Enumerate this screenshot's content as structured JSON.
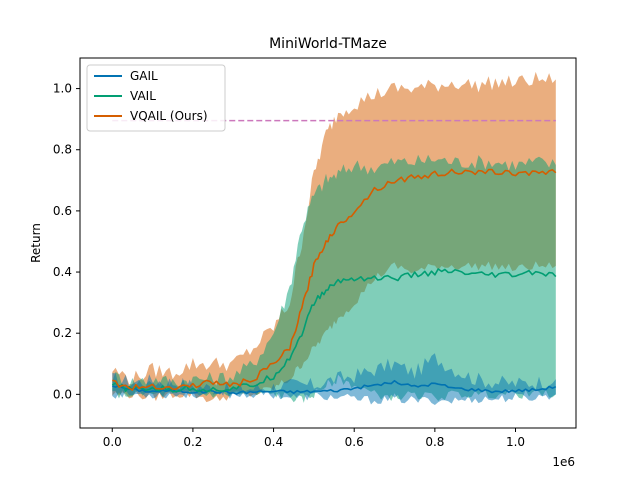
{
  "chart_data": {
    "type": "line",
    "title": "MiniWorld-TMaze",
    "xlabel": "",
    "ylabel": "Return",
    "x_offset_label": "1e6",
    "xlim": [
      -0.08,
      1.15
    ],
    "ylim": [
      -0.11,
      1.1
    ],
    "x_ticks": [
      0.0,
      0.2,
      0.4,
      0.6,
      0.8,
      1.0
    ],
    "x_tick_labels": [
      "0.0",
      "0.2",
      "0.4",
      "0.6",
      "0.8",
      "1.0"
    ],
    "y_ticks": [
      0.0,
      0.2,
      0.4,
      0.6,
      0.8,
      1.0
    ],
    "y_tick_labels": [
      "0.0",
      "0.2",
      "0.4",
      "0.6",
      "0.8",
      "1.0"
    ],
    "grid": false,
    "legend_position": "top-left",
    "reference_line": {
      "y": 0.895,
      "color": "#cc78bc",
      "style": "dashed"
    },
    "series": [
      {
        "name": "GAIL",
        "color": "#0173b2",
        "x": [
          0.0,
          0.05,
          0.1,
          0.15,
          0.2,
          0.25,
          0.3,
          0.35,
          0.4,
          0.45,
          0.5,
          0.55,
          0.6,
          0.65,
          0.7,
          0.75,
          0.8,
          0.85,
          0.9,
          0.95,
          1.0,
          1.05,
          1.1
        ],
        "mean": [
          0.03,
          0.015,
          0.01,
          0.012,
          0.008,
          0.01,
          0.005,
          0.008,
          0.01,
          0.008,
          0.01,
          0.012,
          0.02,
          0.03,
          0.04,
          0.025,
          0.035,
          0.02,
          0.015,
          0.01,
          0.012,
          0.015,
          0.025
        ],
        "lower": [
          0.0,
          0.0,
          0.0,
          0.0,
          0.0,
          0.0,
          0.0,
          0.0,
          0.0,
          -0.01,
          -0.005,
          -0.01,
          -0.015,
          -0.02,
          -0.015,
          -0.02,
          -0.02,
          -0.02,
          -0.015,
          -0.015,
          -0.01,
          -0.01,
          0.0
        ],
        "upper": [
          0.05,
          0.04,
          0.045,
          0.04,
          0.03,
          0.02,
          0.015,
          0.02,
          0.025,
          0.03,
          0.03,
          0.05,
          0.06,
          0.08,
          0.1,
          0.07,
          0.12,
          0.08,
          0.05,
          0.04,
          0.035,
          0.04,
          0.05
        ]
      },
      {
        "name": "VAIL",
        "color": "#029e73",
        "x": [
          0.0,
          0.05,
          0.1,
          0.15,
          0.2,
          0.25,
          0.3,
          0.35,
          0.4,
          0.44,
          0.47,
          0.5,
          0.53,
          0.56,
          0.6,
          0.65,
          0.7,
          0.75,
          0.8,
          0.85,
          0.9,
          0.95,
          1.0,
          1.05,
          1.1
        ],
        "mean": [
          0.03,
          0.015,
          0.02,
          0.015,
          0.02,
          0.015,
          0.02,
          0.03,
          0.06,
          0.12,
          0.2,
          0.3,
          0.34,
          0.37,
          0.38,
          0.38,
          0.38,
          0.39,
          0.4,
          0.4,
          0.39,
          0.39,
          0.39,
          0.4,
          0.385
        ],
        "lower": [
          0.0,
          0.0,
          0.0,
          0.0,
          0.0,
          0.0,
          0.0,
          0.0,
          0.0,
          -0.01,
          -0.02,
          0.0,
          0.03,
          0.05,
          0.03,
          0.0,
          -0.01,
          0.0,
          -0.01,
          0.0,
          0.0,
          0.0,
          0.0,
          0.0,
          0.0
        ],
        "upper": [
          0.06,
          0.04,
          0.05,
          0.04,
          0.05,
          0.05,
          0.06,
          0.1,
          0.2,
          0.35,
          0.55,
          0.65,
          0.7,
          0.72,
          0.75,
          0.74,
          0.76,
          0.76,
          0.77,
          0.76,
          0.76,
          0.76,
          0.75,
          0.76,
          0.75
        ]
      },
      {
        "name": "VQAIL (Ours)",
        "color": "#d55e00",
        "x": [
          0.0,
          0.05,
          0.1,
          0.15,
          0.2,
          0.25,
          0.3,
          0.35,
          0.4,
          0.44,
          0.47,
          0.5,
          0.53,
          0.56,
          0.6,
          0.65,
          0.7,
          0.75,
          0.8,
          0.85,
          0.9,
          0.95,
          1.0,
          1.05,
          1.1
        ],
        "mean": [
          0.04,
          0.02,
          0.03,
          0.02,
          0.03,
          0.04,
          0.03,
          0.05,
          0.1,
          0.15,
          0.28,
          0.42,
          0.5,
          0.55,
          0.6,
          0.67,
          0.7,
          0.71,
          0.72,
          0.73,
          0.72,
          0.73,
          0.72,
          0.73,
          0.725
        ],
        "lower": [
          0.0,
          0.0,
          -0.01,
          0.0,
          0.0,
          -0.02,
          0.0,
          0.0,
          0.02,
          0.05,
          0.1,
          0.15,
          0.2,
          0.25,
          0.3,
          0.38,
          0.42,
          0.4,
          0.42,
          0.42,
          0.42,
          0.42,
          0.41,
          0.42,
          0.42
        ],
        "upper": [
          0.08,
          0.05,
          0.08,
          0.07,
          0.1,
          0.1,
          0.1,
          0.15,
          0.22,
          0.3,
          0.5,
          0.72,
          0.85,
          0.92,
          0.95,
          0.98,
          1.0,
          1.0,
          1.01,
          1.02,
          1.01,
          1.02,
          1.02,
          1.03,
          1.03
        ]
      }
    ]
  }
}
